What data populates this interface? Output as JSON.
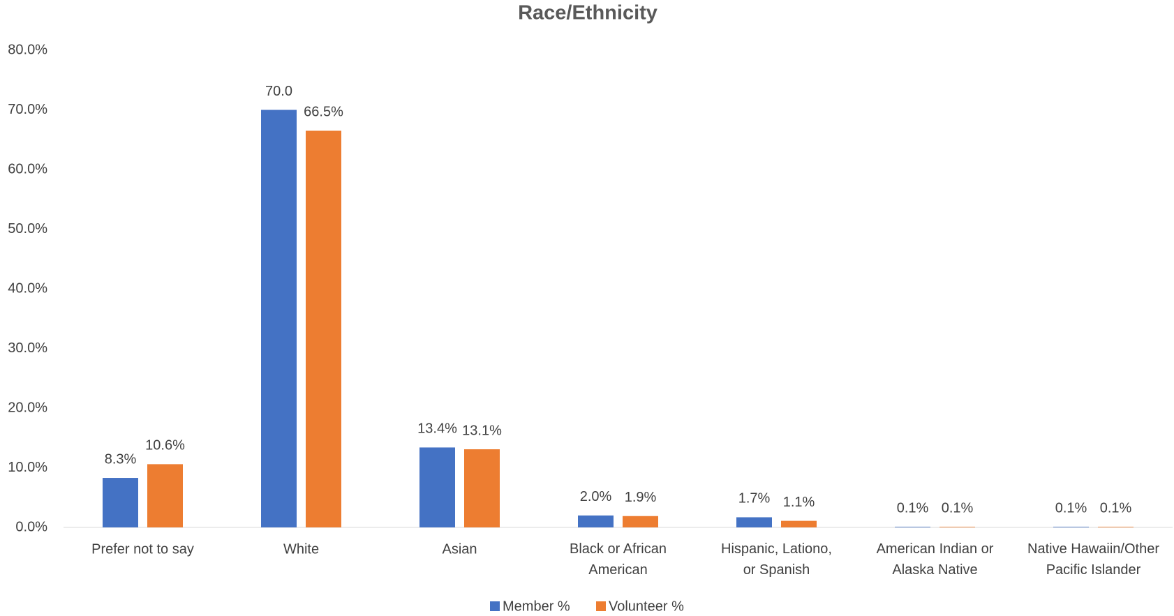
{
  "chart_data": {
    "type": "bar",
    "title": "Race/Ethnicity",
    "categories": [
      "Prefer not to say",
      "White",
      "Asian",
      "Black or African American",
      "Hispanic, Lationo, or Spanish",
      "American Indian or Alaska Native",
      "Native Hawaiin/Other Pacific Islander"
    ],
    "series": [
      {
        "name": "Member %",
        "color": "#4472c4",
        "values": [
          8.3,
          70.0,
          13.4,
          2.0,
          1.7,
          0.1,
          0.1
        ],
        "value_labels": [
          "8.3%",
          "70.0",
          "13.4%",
          "2.0%",
          "1.7%",
          "0.1%",
          "0.1%"
        ]
      },
      {
        "name": "Volunteer %",
        "color": "#ed7d31",
        "values": [
          10.6,
          66.5,
          13.1,
          1.9,
          1.1,
          0.1,
          0.1
        ],
        "value_labels": [
          "10.6%",
          "66.5%",
          "13.1%",
          "1.9%",
          "1.1%",
          "0.1%",
          "0.1%"
        ]
      }
    ],
    "ylim": [
      0,
      80
    ],
    "yticks": [
      {
        "value": 0,
        "label": "0.0%"
      },
      {
        "value": 10,
        "label": "10.0%"
      },
      {
        "value": 20,
        "label": "20.0%"
      },
      {
        "value": 30,
        "label": "30.0%"
      },
      {
        "value": 40,
        "label": "40.0%"
      },
      {
        "value": 50,
        "label": "50.0%"
      },
      {
        "value": 60,
        "label": "60.0%"
      },
      {
        "value": 70,
        "label": "70.0%"
      },
      {
        "value": 80,
        "label": "80.0%"
      }
    ],
    "legend": "bottom"
  }
}
